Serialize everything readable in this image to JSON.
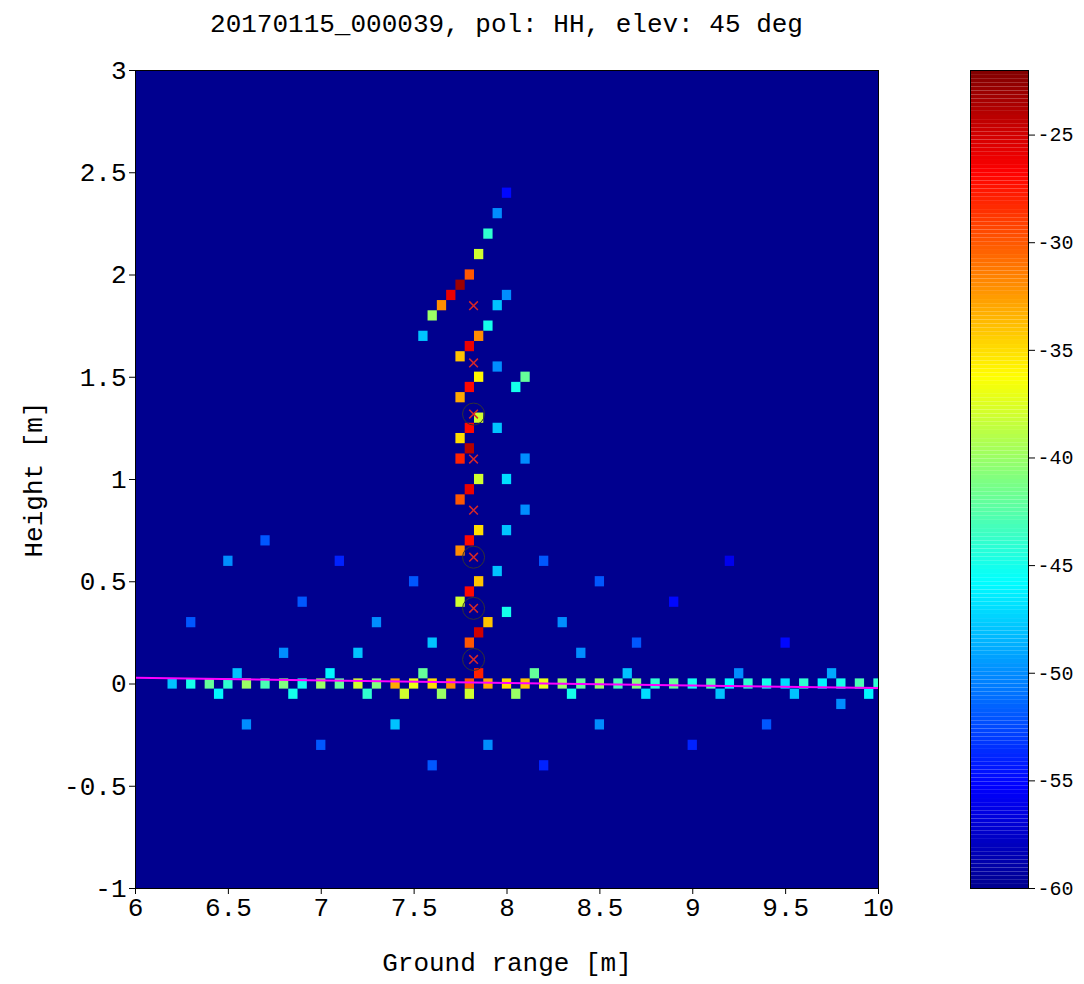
{
  "chart_data": {
    "type": "heatmap",
    "title": "20170115_000039, pol: HH, elev: 45 deg",
    "x_label": "Ground range [m]",
    "y_label": "Height [m]",
    "xlim": [
      6,
      10
    ],
    "xticks": [
      6,
      6.5,
      7,
      7.5,
      8,
      8.5,
      9,
      9.5,
      10
    ],
    "ylim": [
      -1,
      3
    ],
    "yticks": [
      -1,
      -0.5,
      0,
      0.5,
      1,
      1.5,
      2,
      2.5,
      3
    ],
    "colorbar": {
      "range": [
        -60,
        -22
      ],
      "ticks": [
        -60,
        -55,
        -50,
        -45,
        -40,
        -35,
        -30,
        -25
      ]
    },
    "cells": [
      [
        7.55,
        1.7,
        -48
      ],
      [
        7.6,
        1.8,
        -40
      ],
      [
        7.65,
        1.85,
        -32
      ],
      [
        7.7,
        1.9,
        -26
      ],
      [
        7.75,
        1.95,
        -23
      ],
      [
        7.8,
        2.0,
        -30
      ],
      [
        7.85,
        2.1,
        -38
      ],
      [
        7.9,
        2.2,
        -44
      ],
      [
        7.95,
        2.3,
        -50
      ],
      [
        8.0,
        2.4,
        -55
      ],
      [
        7.75,
        1.6,
        -34
      ],
      [
        7.8,
        1.65,
        -26
      ],
      [
        7.85,
        1.7,
        -32
      ],
      [
        7.9,
        1.75,
        -45
      ],
      [
        7.95,
        1.85,
        -48
      ],
      [
        8.0,
        1.9,
        -50
      ],
      [
        7.75,
        1.4,
        -33
      ],
      [
        7.8,
        1.45,
        -27
      ],
      [
        7.85,
        1.5,
        -36
      ],
      [
        7.95,
        1.55,
        -50
      ],
      [
        8.05,
        1.45,
        -45
      ],
      [
        8.1,
        1.5,
        -42
      ],
      [
        7.75,
        1.2,
        -35
      ],
      [
        7.8,
        1.25,
        -27
      ],
      [
        7.85,
        1.3,
        -38
      ],
      [
        7.75,
        1.1,
        -28
      ],
      [
        7.8,
        1.15,
        -24
      ],
      [
        7.75,
        0.9,
        -30
      ],
      [
        7.8,
        0.95,
        -26
      ],
      [
        7.85,
        1.0,
        -38
      ],
      [
        7.75,
        0.65,
        -32
      ],
      [
        7.8,
        0.7,
        -27
      ],
      [
        7.85,
        0.75,
        -35
      ],
      [
        7.75,
        0.4,
        -38
      ],
      [
        7.8,
        0.45,
        -27
      ],
      [
        7.85,
        0.5,
        -34
      ],
      [
        7.8,
        0.2,
        -30
      ],
      [
        7.85,
        0.25,
        -25
      ],
      [
        7.9,
        0.3,
        -34
      ],
      [
        7.8,
        0.0,
        -30
      ],
      [
        7.85,
        0.05,
        -28
      ],
      [
        7.8,
        -0.05,
        -38
      ],
      [
        8.0,
        1.0,
        -47
      ],
      [
        8.1,
        1.1,
        -50
      ],
      [
        8.0,
        0.75,
        -48
      ],
      [
        8.1,
        0.85,
        -50
      ],
      [
        7.95,
        0.55,
        -48
      ],
      [
        8.0,
        0.35,
        -45
      ],
      [
        7.95,
        1.25,
        -48
      ],
      [
        6.3,
        0.3,
        -52
      ],
      [
        6.5,
        0.6,
        -50
      ],
      [
        6.7,
        0.7,
        -52
      ],
      [
        6.9,
        0.4,
        -52
      ],
      [
        7.1,
        0.6,
        -54
      ],
      [
        7.3,
        0.3,
        -50
      ],
      [
        7.5,
        0.5,
        -52
      ],
      [
        7.6,
        0.2,
        -48
      ],
      [
        8.2,
        0.6,
        -52
      ],
      [
        8.3,
        0.3,
        -50
      ],
      [
        8.5,
        0.5,
        -52
      ],
      [
        8.7,
        0.2,
        -52
      ],
      [
        8.9,
        0.4,
        -55
      ],
      [
        9.2,
        0.6,
        -56
      ],
      [
        9.5,
        0.2,
        -55
      ],
      [
        6.8,
        0.15,
        -50
      ],
      [
        7.2,
        0.15,
        -48
      ],
      [
        8.4,
        0.15,
        -50
      ],
      [
        6.6,
        -0.2,
        -50
      ],
      [
        7.0,
        -0.3,
        -52
      ],
      [
        7.4,
        -0.2,
        -48
      ],
      [
        7.6,
        -0.4,
        -52
      ],
      [
        7.9,
        -0.3,
        -50
      ],
      [
        8.2,
        -0.4,
        -54
      ],
      [
        8.5,
        -0.2,
        -50
      ],
      [
        9.0,
        -0.3,
        -54
      ],
      [
        9.4,
        -0.2,
        -52
      ],
      [
        9.8,
        -0.1,
        -50
      ],
      [
        6.2,
        0,
        -48
      ],
      [
        6.3,
        0,
        -45
      ],
      [
        6.4,
        0,
        -42
      ],
      [
        6.5,
        0,
        -44
      ],
      [
        6.6,
        0,
        -40
      ],
      [
        6.7,
        0,
        -43
      ],
      [
        6.8,
        0,
        -41
      ],
      [
        6.9,
        0,
        -45
      ],
      [
        7.0,
        0,
        -40
      ],
      [
        7.1,
        0,
        -42
      ],
      [
        7.2,
        0,
        -38
      ],
      [
        7.3,
        0,
        -41
      ],
      [
        7.4,
        0,
        -33
      ],
      [
        7.5,
        0,
        -37
      ],
      [
        7.6,
        0,
        -35
      ],
      [
        7.7,
        0,
        -32
      ],
      [
        7.9,
        0,
        -33
      ],
      [
        8.0,
        0,
        -35
      ],
      [
        8.1,
        0,
        -34
      ],
      [
        8.2,
        0,
        -37
      ],
      [
        8.3,
        0,
        -40
      ],
      [
        8.4,
        0,
        -42
      ],
      [
        8.5,
        0,
        -40
      ],
      [
        8.6,
        0,
        -43
      ],
      [
        8.7,
        0,
        -41
      ],
      [
        8.8,
        0,
        -44
      ],
      [
        8.9,
        0,
        -42
      ],
      [
        9.0,
        0,
        -45
      ],
      [
        9.1,
        0,
        -43
      ],
      [
        9.2,
        0,
        -46
      ],
      [
        9.3,
        0,
        -44
      ],
      [
        9.4,
        0,
        -45
      ],
      [
        9.5,
        0,
        -47
      ],
      [
        9.6,
        0,
        -44
      ],
      [
        9.7,
        0,
        -46
      ],
      [
        9.8,
        0,
        -45
      ],
      [
        9.9,
        0,
        -43
      ],
      [
        10.0,
        0,
        -44
      ],
      [
        6.45,
        -0.05,
        -46
      ],
      [
        6.85,
        -0.05,
        -45
      ],
      [
        7.25,
        -0.05,
        -44
      ],
      [
        7.45,
        -0.05,
        -38
      ],
      [
        7.65,
        -0.05,
        -40
      ],
      [
        8.05,
        -0.05,
        -40
      ],
      [
        8.35,
        -0.05,
        -45
      ],
      [
        8.75,
        -0.05,
        -47
      ],
      [
        9.15,
        -0.05,
        -48
      ],
      [
        9.55,
        -0.05,
        -48
      ],
      [
        9.95,
        -0.05,
        -46
      ],
      [
        6.55,
        0.05,
        -48
      ],
      [
        7.05,
        0.05,
        -46
      ],
      [
        7.55,
        0.05,
        -42
      ],
      [
        8.15,
        0.05,
        -42
      ],
      [
        8.65,
        0.05,
        -48
      ],
      [
        9.25,
        0.05,
        -50
      ],
      [
        9.75,
        0.05,
        -49
      ]
    ],
    "ground_line": {
      "x": [
        6,
        10
      ],
      "y": [
        0.03,
        -0.02
      ],
      "color": "#ff00ff"
    },
    "markers": [
      {
        "x": [
          7.82,
          7.82,
          7.82,
          7.82,
          7.82,
          7.82,
          7.82,
          7.82
        ],
        "y": [
          0.12,
          0.37,
          0.62,
          0.85,
          1.1,
          1.32,
          1.57,
          1.85
        ],
        "marker": "x",
        "color": "#d62728"
      },
      {
        "x": [
          7.82,
          7.82,
          7.82,
          7.82
        ],
        "y": [
          0.12,
          0.37,
          0.62,
          1.32
        ],
        "marker": "circle",
        "color": "#333333"
      }
    ]
  }
}
